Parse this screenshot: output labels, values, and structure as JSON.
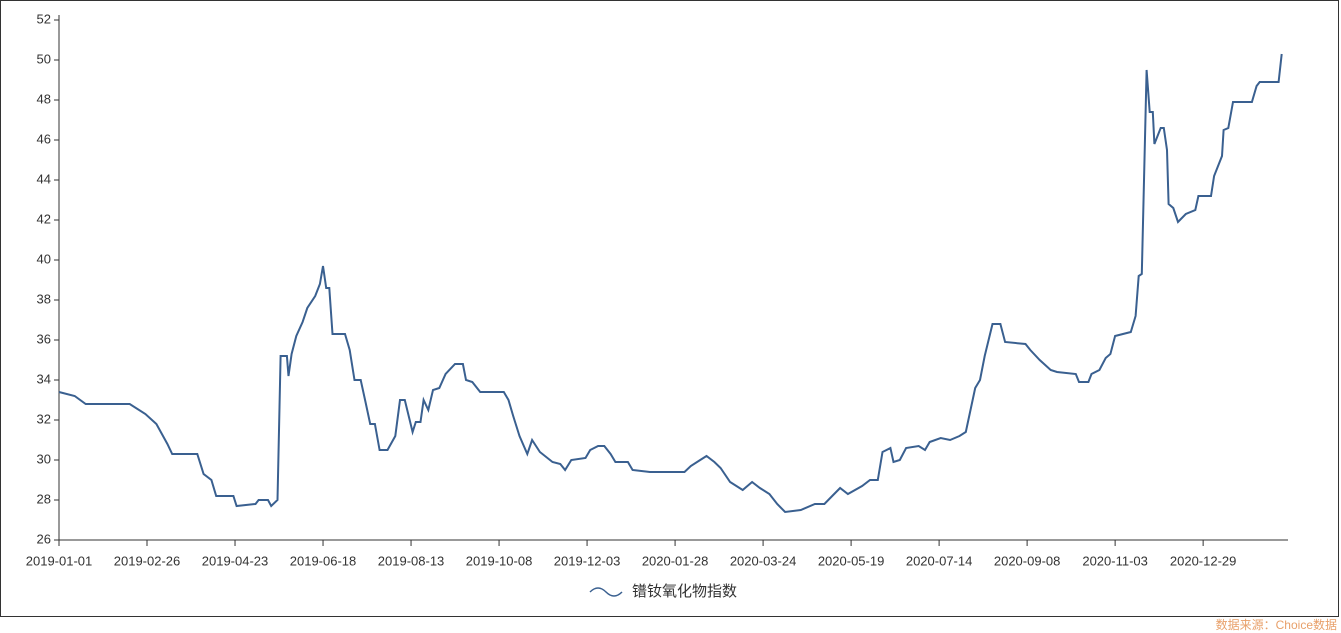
{
  "chart_data": {
    "type": "line",
    "x": [
      "2019-01-01",
      "2019-01-11",
      "2019-01-18",
      "2019-02-15",
      "2019-02-25",
      "2019-03-04",
      "2019-03-11",
      "2019-03-14",
      "2019-03-30",
      "2019-04-03",
      "2019-04-08",
      "2019-04-11",
      "2019-04-22",
      "2019-04-24",
      "2019-05-06",
      "2019-05-08",
      "2019-05-14",
      "2019-05-16",
      "2019-05-20",
      "2019-05-22",
      "2019-05-26",
      "2019-05-27",
      "2019-05-29",
      "2019-06-01",
      "2019-06-05",
      "2019-06-08",
      "2019-06-13",
      "2019-06-16",
      "2019-06-18",
      "2019-06-20",
      "2019-06-22",
      "2019-06-24",
      "2019-07-02",
      "2019-07-05",
      "2019-07-08",
      "2019-07-12",
      "2019-07-15",
      "2019-07-18",
      "2019-07-21",
      "2019-07-24",
      "2019-07-29",
      "2019-08-03",
      "2019-08-06",
      "2019-08-09",
      "2019-08-14",
      "2019-08-16",
      "2019-08-19",
      "2019-08-21",
      "2019-08-24",
      "2019-08-27",
      "2019-08-31",
      "2019-09-04",
      "2019-09-10",
      "2019-09-15",
      "2019-09-17",
      "2019-09-21",
      "2019-09-26",
      "2019-10-11",
      "2019-10-14",
      "2019-10-17",
      "2019-10-21",
      "2019-10-26",
      "2019-10-29",
      "2019-11-03",
      "2019-11-11",
      "2019-11-16",
      "2019-11-19",
      "2019-11-23",
      "2019-12-02",
      "2019-12-05",
      "2019-12-10",
      "2019-12-14",
      "2019-12-18",
      "2019-12-21",
      "2019-12-29",
      "2020-01-01",
      "2020-01-12",
      "2020-02-03",
      "2020-02-07",
      "2020-02-13",
      "2020-02-17",
      "2020-02-22",
      "2020-02-26",
      "2020-03-03",
      "2020-03-11",
      "2020-03-17",
      "2020-03-22",
      "2020-03-28",
      "2020-04-02",
      "2020-04-07",
      "2020-04-17",
      "2020-04-26",
      "2020-05-02",
      "2020-05-07",
      "2020-05-12",
      "2020-05-17",
      "2020-05-26",
      "2020-05-31",
      "2020-06-05",
      "2020-06-08",
      "2020-06-13",
      "2020-06-15",
      "2020-06-19",
      "2020-06-23",
      "2020-07-01",
      "2020-07-05",
      "2020-07-08",
      "2020-07-15",
      "2020-07-21",
      "2020-07-27",
      "2020-07-31",
      "2020-08-03",
      "2020-08-06",
      "2020-08-09",
      "2020-08-12",
      "2020-08-17",
      "2020-08-22",
      "2020-08-25",
      "2020-09-07",
      "2020-09-10",
      "2020-09-16",
      "2020-09-23",
      "2020-09-27",
      "2020-10-09",
      "2020-10-11",
      "2020-10-17",
      "2020-10-19",
      "2020-10-24",
      "2020-10-28",
      "2020-10-31",
      "2020-11-03",
      "2020-11-13",
      "2020-11-16",
      "2020-11-18",
      "2020-11-20",
      "2020-11-23",
      "2020-11-25",
      "2020-11-27",
      "2020-11-28",
      "2020-12-02",
      "2020-12-04",
      "2020-12-06",
      "2020-12-07",
      "2020-12-10",
      "2020-12-13",
      "2020-12-18",
      "2020-12-24",
      "2020-12-26",
      "2021-01-03",
      "2021-01-05",
      "2021-01-10",
      "2021-01-11",
      "2021-01-14",
      "2021-01-17",
      "2021-01-29",
      "2021-02-01",
      "2021-02-03",
      "2021-02-15",
      "2021-02-17"
    ],
    "series": [
      {
        "name": "镨钕氧化物指数",
        "color": "#3a6090",
        "values": [
          33.4,
          33.2,
          32.8,
          32.8,
          32.3,
          31.8,
          30.8,
          30.3,
          30.3,
          29.3,
          29.0,
          28.2,
          28.2,
          27.7,
          27.8,
          28.0,
          28.0,
          27.7,
          28.0,
          35.2,
          35.2,
          34.2,
          35.3,
          36.2,
          36.9,
          37.6,
          38.2,
          38.8,
          39.7,
          38.6,
          38.6,
          36.3,
          36.3,
          35.5,
          34.0,
          34.0,
          32.9,
          31.8,
          31.8,
          30.5,
          30.5,
          31.2,
          33.0,
          33.0,
          31.4,
          31.9,
          31.9,
          33.0,
          32.5,
          33.5,
          33.6,
          34.3,
          34.8,
          34.8,
          34.0,
          33.9,
          33.4,
          33.4,
          33.0,
          32.2,
          31.2,
          30.3,
          31.0,
          30.4,
          29.9,
          29.8,
          29.5,
          30.0,
          30.1,
          30.5,
          30.7,
          30.7,
          30.3,
          29.9,
          29.9,
          29.5,
          29.4,
          29.4,
          29.7,
          30.0,
          30.2,
          29.9,
          29.6,
          28.9,
          28.5,
          28.9,
          28.6,
          28.3,
          27.8,
          27.4,
          27.5,
          27.8,
          27.8,
          28.2,
          28.6,
          28.3,
          28.7,
          29.0,
          29.0,
          30.4,
          30.6,
          29.9,
          30.0,
          30.6,
          30.7,
          30.5,
          30.9,
          31.1,
          31.0,
          31.2,
          31.4,
          32.5,
          33.6,
          34.0,
          35.2,
          36.8,
          36.8,
          35.9,
          35.8,
          35.5,
          35.0,
          34.5,
          34.4,
          34.3,
          33.9,
          33.9,
          34.3,
          34.5,
          35.1,
          35.3,
          36.2,
          36.4,
          37.2,
          39.2,
          39.3,
          49.5,
          47.4,
          47.4,
          45.8,
          46.6,
          46.6,
          45.5,
          42.8,
          42.6,
          41.9,
          42.3,
          42.5,
          43.2,
          43.2,
          44.2,
          45.2,
          46.5,
          46.6,
          47.9,
          47.9,
          48.7,
          48.9,
          48.9,
          50.3
        ]
      }
    ],
    "xlim": [
      "2019-01-01",
      "2021-02-21"
    ],
    "xticks": [
      "2019-01-01",
      "2019-02-26",
      "2019-04-23",
      "2019-06-18",
      "2019-08-13",
      "2019-10-08",
      "2019-12-03",
      "2020-01-28",
      "2020-03-24",
      "2020-05-19",
      "2020-07-14",
      "2020-09-08",
      "2020-11-03",
      "2020-12-29"
    ],
    "ylim": [
      26,
      52
    ],
    "yticks": [
      26,
      28,
      30,
      32,
      34,
      36,
      38,
      40,
      42,
      44,
      46,
      48,
      50,
      52
    ],
    "legend": "bottom",
    "grid": false,
    "source": "数据来源：Choice数据"
  }
}
